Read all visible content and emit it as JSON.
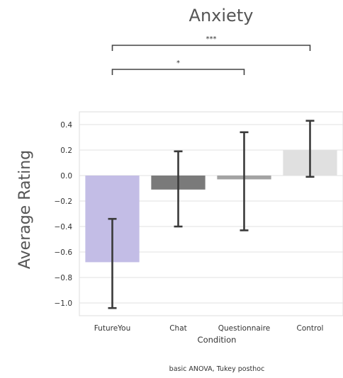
{
  "chart_data": {
    "type": "bar",
    "title": "Anxiety",
    "xlabel": "Condition",
    "ylabel": "Average Rating",
    "categories": [
      "FutureYou",
      "Chat",
      "Questionnaire",
      "Control"
    ],
    "values": [
      -0.68,
      -0.11,
      -0.03,
      0.2
    ],
    "error_low": [
      -1.04,
      -0.4,
      -0.43,
      -0.01
    ],
    "error_high": [
      -0.34,
      0.19,
      0.34,
      0.43
    ],
    "colors": [
      "#c3bde6",
      "#7a7a7a",
      "#a3a3a3",
      "#e0e0e0"
    ],
    "ylim": [
      -1.1,
      0.5
    ],
    "yticks": [
      0.4,
      0.2,
      0.0,
      -0.2,
      -0.4,
      -0.6,
      -0.8,
      -1.0
    ],
    "ytick_labels": [
      "0.4",
      "0.2",
      "0.0",
      "−0.2",
      "−0.4",
      "−0.6",
      "−0.8",
      "−1.0"
    ],
    "grid": true,
    "significance": [
      {
        "from": "FutureYou",
        "to": "Control",
        "label": "***"
      },
      {
        "from": "FutureYou",
        "to": "Questionnaire",
        "label": "*"
      }
    ],
    "caption": "basic ANOVA, Tukey posthoc"
  }
}
